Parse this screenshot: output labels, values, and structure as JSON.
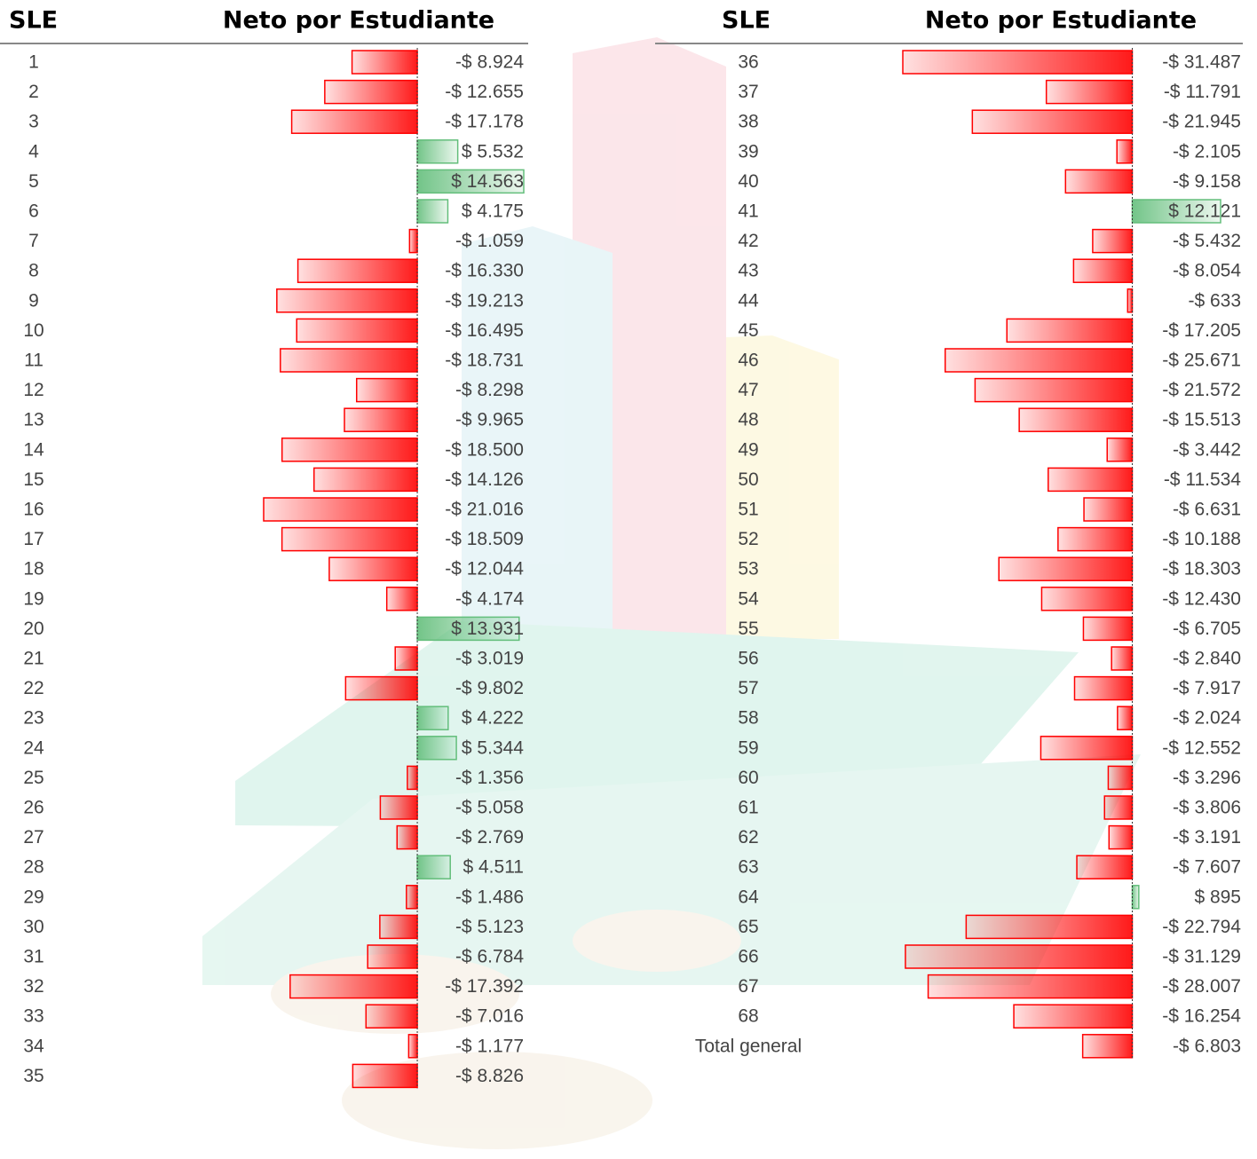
{
  "chart_data": [
    {
      "type": "bar",
      "category_header": "SLE",
      "value_header": "Neto por Estudiante",
      "categories": [
        "1",
        "2",
        "3",
        "4",
        "5",
        "6",
        "7",
        "8",
        "9",
        "10",
        "11",
        "12",
        "13",
        "14",
        "15",
        "16",
        "17",
        "18",
        "19",
        "20",
        "21",
        "22",
        "23",
        "24",
        "25",
        "26",
        "27",
        "28",
        "29",
        "30",
        "31",
        "32",
        "33",
        "34",
        "35"
      ],
      "values": [
        -8924,
        -12655,
        -17178,
        5532,
        14563,
        4175,
        -1059,
        -16330,
        -19213,
        -16495,
        -18731,
        -8298,
        -9965,
        -18500,
        -14126,
        -21016,
        -18509,
        -12044,
        -4174,
        13931,
        -3019,
        -9802,
        4222,
        5344,
        -1356,
        -5058,
        -2769,
        4511,
        -1486,
        -5123,
        -6784,
        -17392,
        -7016,
        -1177,
        -8826
      ],
      "value_labels": [
        "-$ 8.924",
        "-$ 12.655",
        "-$ 17.178",
        "$ 5.532",
        "$ 14.563",
        "$ 4.175",
        "-$ 1.059",
        "-$ 16.330",
        "-$ 19.213",
        "-$ 16.495",
        "-$ 18.731",
        "-$ 8.298",
        "-$ 9.965",
        "-$ 18.500",
        "-$ 14.126",
        "-$ 21.016",
        "-$ 18.509",
        "-$ 12.044",
        "-$ 4.174",
        "$ 13.931",
        "-$ 3.019",
        "-$ 9.802",
        "$ 4.222",
        "$ 5.344",
        "-$ 1.356",
        "-$ 5.058",
        "-$ 2.769",
        "$ 4.511",
        "-$ 1.486",
        "-$ 5.123",
        "-$ 6.784",
        "-$ 17.392",
        "-$ 7.016",
        "-$ 1.177",
        "-$ 8.826"
      ],
      "xlim": [
        -21016,
        14563
      ],
      "positive_color": "#63be7b",
      "negative_color": "#ff0000"
    },
    {
      "type": "bar",
      "category_header": "SLE",
      "value_header": "Neto por Estudiante",
      "categories": [
        "36",
        "37",
        "38",
        "39",
        "40",
        "41",
        "42",
        "43",
        "44",
        "45",
        "46",
        "47",
        "48",
        "49",
        "50",
        "51",
        "52",
        "53",
        "54",
        "55",
        "56",
        "57",
        "58",
        "59",
        "60",
        "61",
        "62",
        "63",
        "64",
        "65",
        "66",
        "67",
        "68",
        "Total general"
      ],
      "values": [
        -31487,
        -11791,
        -21945,
        -2105,
        -9158,
        12121,
        -5432,
        -8054,
        -633,
        -17205,
        -25671,
        -21572,
        -15513,
        -3442,
        -11534,
        -6631,
        -10188,
        -18303,
        -12430,
        -6705,
        -2840,
        -7917,
        -2024,
        -12552,
        -3296,
        -3806,
        -3191,
        -7607,
        895,
        -22794,
        -31129,
        -28007,
        -16254,
        -6803
      ],
      "value_labels": [
        "-$ 31.487",
        "-$ 11.791",
        "-$ 21.945",
        "-$ 2.105",
        "-$ 9.158",
        "$ 12.121",
        "-$ 5.432",
        "-$ 8.054",
        "-$ 633",
        "-$ 17.205",
        "-$ 25.671",
        "-$ 21.572",
        "-$ 15.513",
        "-$ 3.442",
        "-$ 11.534",
        "-$ 6.631",
        "-$ 10.188",
        "-$ 18.303",
        "-$ 12.430",
        "-$ 6.705",
        "-$ 2.840",
        "-$ 7.917",
        "-$ 2.024",
        "-$ 12.552",
        "-$ 3.296",
        "-$ 3.806",
        "-$ 3.191",
        "-$ 7.607",
        "$ 895",
        "-$ 22.794",
        "-$ 31.129",
        "-$ 28.007",
        "-$ 16.254",
        "-$ 6.803"
      ],
      "xlim": [
        -31487,
        12121
      ],
      "positive_color": "#63be7b",
      "negative_color": "#ff0000"
    }
  ]
}
